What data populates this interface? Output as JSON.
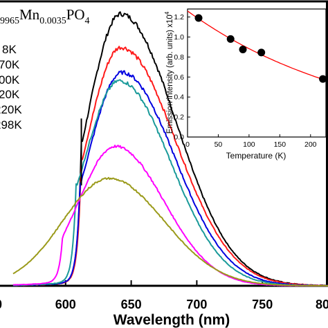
{
  "chart_data": [
    {
      "type": "line",
      "title_parts": {
        "pre": "9965",
        "mn": "Mn",
        "mn_sub": "0.0035",
        "po": "PO",
        "po_sub": "4"
      },
      "xlabel": "Wavelength (nm)",
      "ylabel": "",
      "xlim": [
        550,
        800
      ],
      "ylim": [
        0,
        1.0
      ],
      "xticks": [
        "600",
        "650",
        "700",
        "750"
      ],
      "edge_tick_labels": {
        "left": "0",
        "right": "80"
      },
      "legend_entries": [
        "8K",
        "70K",
        "00K",
        "20K",
        "220K",
        "298K"
      ],
      "sharp_line_nm": 612,
      "series": [
        {
          "legend": "8K",
          "color": "#000000",
          "peak_nm": 642,
          "peak": 0.975,
          "left_width": 26,
          "right_width": 42,
          "edge_nm": 612,
          "tail": 0.015
        },
        {
          "legend": "70K",
          "color": "#ff1a1a",
          "peak_nm": 642,
          "peak": 0.855,
          "left_width": 26,
          "right_width": 42,
          "edge_nm": 612,
          "tail": 0.015
        },
        {
          "legend": "00K",
          "color": "#0000e0",
          "peak_nm": 643,
          "peak": 0.765,
          "left_width": 26,
          "right_width": 40,
          "edge_nm": 611,
          "tail": 0.015
        },
        {
          "legend": "20K",
          "color": "#1a9a9a",
          "peak_nm": 641,
          "peak": 0.735,
          "left_width": 27,
          "right_width": 39,
          "edge_nm": 608,
          "tail": 0.015
        },
        {
          "legend": "220K",
          "color": "#ff00ff",
          "peak_nm": 638,
          "peak": 0.5,
          "left_width": 28,
          "right_width": 37,
          "edge_nm": 598,
          "tail": 0.015
        },
        {
          "legend": "298K",
          "color": "#9a9a1a",
          "peak_nm": 633,
          "peak": 0.385,
          "left_width": 35,
          "right_width": 42,
          "edge_nm": 0,
          "tail": 0.0
        }
      ]
    },
    {
      "type": "scatter",
      "xlabel": "Temperature (K)",
      "ylabel_main": "Emission intensity (arb. units) x10",
      "ylabel_sup": "4",
      "xlim": [
        0,
        225
      ],
      "ylim": [
        0,
        1.28
      ],
      "xticks": [
        0,
        50,
        100,
        150,
        200
      ],
      "yticks": [
        0.0,
        0.2,
        0.4,
        0.6,
        0.8,
        1.0,
        1.2
      ],
      "ytick_labels": [
        "0.0",
        "0.2",
        "0.4",
        "0.6",
        "0.8",
        "1.0",
        "1.2"
      ],
      "points": [
        {
          "x": 18,
          "y": 1.19
        },
        {
          "x": 70,
          "y": 0.98
        },
        {
          "x": 90,
          "y": 0.875
        },
        {
          "x": 120,
          "y": 0.845
        },
        {
          "x": 220,
          "y": 0.58
        }
      ],
      "fit": {
        "type": "exponential",
        "color": "#ff0000",
        "a": 1.26,
        "b": 0.00355
      }
    }
  ]
}
